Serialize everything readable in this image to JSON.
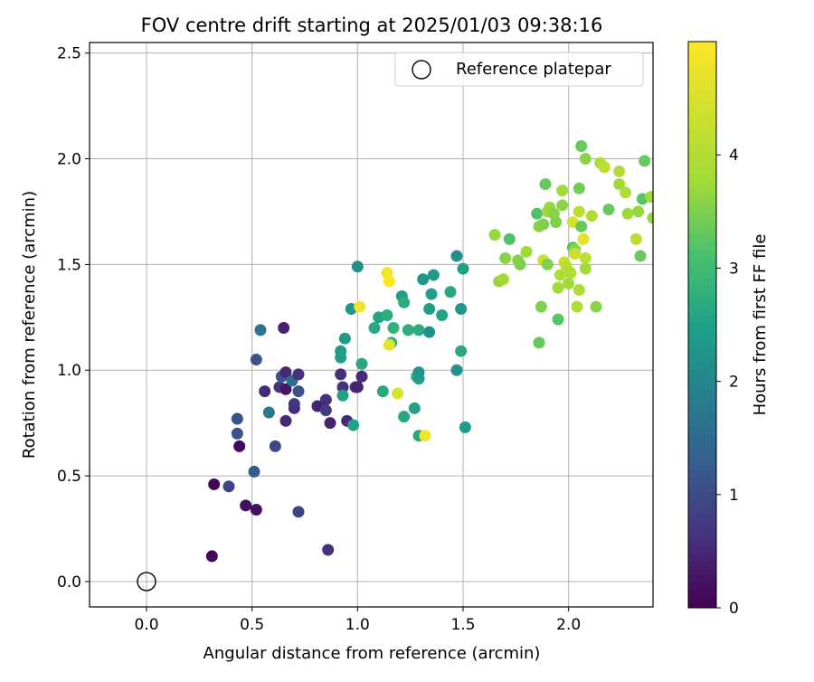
{
  "chart_data": {
    "type": "scatter",
    "title": "FOV centre drift starting at 2025/01/03 09:38:16",
    "xlabel": "Angular distance from reference (arcmin)",
    "ylabel": "Rotation from reference (arcmin)",
    "xlim": [
      -0.27,
      2.4
    ],
    "ylim": [
      -0.12,
      2.55
    ],
    "xticks": [
      "0.0",
      "0.5",
      "1.0",
      "1.5",
      "2.0"
    ],
    "yticks": [
      "0.0",
      "0.5",
      "1.0",
      "1.5",
      "2.0",
      "2.5"
    ],
    "grid": true,
    "legend": {
      "placement": "top-right",
      "entries": [
        "Reference platepar"
      ]
    },
    "reference": {
      "x": 0.0,
      "y": 0.0
    },
    "colorbar": {
      "label": "Hours from first FF file",
      "ticks": [
        "0",
        "1",
        "2",
        "3",
        "4"
      ],
      "range": [
        0,
        5
      ],
      "colormap": "viridis"
    },
    "points": [
      [
        0.31,
        0.12,
        0.1
      ],
      [
        0.32,
        0.46,
        0.1
      ],
      [
        0.44,
        0.64,
        0.1
      ],
      [
        0.47,
        0.36,
        0.2
      ],
      [
        0.52,
        0.34,
        0.2
      ],
      [
        0.39,
        0.45,
        1.0
      ],
      [
        0.43,
        0.77,
        1.2
      ],
      [
        0.43,
        0.7,
        1.2
      ],
      [
        0.51,
        0.52,
        1.4
      ],
      [
        0.52,
        1.05,
        1.3
      ],
      [
        0.54,
        1.19,
        1.9
      ],
      [
        0.56,
        0.9,
        0.6
      ],
      [
        0.58,
        0.8,
        2.0
      ],
      [
        0.61,
        0.64,
        1.1
      ],
      [
        0.63,
        0.92,
        0.8
      ],
      [
        0.64,
        0.97,
        1.3
      ],
      [
        0.65,
        1.2,
        0.5
      ],
      [
        0.66,
        0.99,
        0.6
      ],
      [
        0.66,
        0.91,
        0.3
      ],
      [
        0.66,
        0.76,
        0.6
      ],
      [
        0.69,
        0.95,
        1.8
      ],
      [
        0.7,
        0.82,
        0.6
      ],
      [
        0.7,
        0.84,
        0.8
      ],
      [
        0.72,
        0.9,
        1.3
      ],
      [
        0.72,
        0.98,
        0.7
      ],
      [
        0.72,
        0.33,
        1.0
      ],
      [
        0.81,
        0.83,
        0.5
      ],
      [
        0.85,
        0.86,
        0.7
      ],
      [
        0.85,
        0.81,
        0.9
      ],
      [
        0.86,
        0.15,
        0.7
      ],
      [
        0.87,
        0.75,
        0.5
      ],
      [
        0.92,
        0.98,
        0.7
      ],
      [
        0.93,
        0.92,
        0.7
      ],
      [
        0.95,
        0.76,
        0.6
      ],
      [
        0.99,
        0.92,
        0.8
      ],
      [
        1.0,
        0.92,
        0.5
      ],
      [
        1.02,
        0.97,
        0.6
      ],
      [
        0.92,
        1.09,
        2.7
      ],
      [
        0.92,
        1.06,
        2.8
      ],
      [
        0.93,
        0.88,
        2.9
      ],
      [
        0.94,
        1.15,
        2.7
      ],
      [
        0.97,
        1.29,
        2.6
      ],
      [
        0.98,
        0.74,
        2.9
      ],
      [
        1.0,
        1.49,
        2.5
      ],
      [
        1.02,
        1.03,
        3.0
      ],
      [
        1.08,
        1.2,
        3.0
      ],
      [
        1.1,
        1.25,
        2.9
      ],
      [
        1.12,
        0.9,
        3.0
      ],
      [
        1.14,
        1.26,
        3.1
      ],
      [
        1.17,
        1.2,
        3.2
      ],
      [
        1.21,
        1.35,
        2.8
      ],
      [
        1.22,
        1.32,
        3.1
      ],
      [
        1.22,
        0.78,
        3.0
      ],
      [
        1.24,
        1.19,
        3.1
      ],
      [
        1.27,
        0.82,
        2.9
      ],
      [
        1.28,
        0.97,
        3.2
      ],
      [
        1.29,
        1.19,
        3.1
      ],
      [
        1.29,
        0.96,
        2.8
      ],
      [
        1.29,
        0.99,
        2.6
      ],
      [
        1.29,
        0.69,
        3.0
      ],
      [
        1.31,
        1.43,
        2.6
      ],
      [
        1.34,
        1.29,
        2.8
      ],
      [
        1.34,
        1.18,
        2.5
      ],
      [
        1.35,
        1.36,
        2.8
      ],
      [
        1.36,
        1.45,
        2.7
      ],
      [
        1.4,
        1.26,
        2.9
      ],
      [
        1.44,
        1.37,
        3.0
      ],
      [
        1.47,
        1.54,
        2.5
      ],
      [
        1.47,
        1.0,
        2.5
      ],
      [
        1.49,
        1.09,
        3.0
      ],
      [
        1.49,
        1.29,
        2.6
      ],
      [
        1.5,
        1.48,
        2.8
      ],
      [
        1.51,
        0.73,
        2.7
      ],
      [
        1.16,
        1.13,
        3.2
      ],
      [
        1.01,
        1.3,
        4.9
      ],
      [
        1.14,
        1.46,
        4.9
      ],
      [
        1.15,
        1.42,
        5.0
      ],
      [
        1.15,
        1.12,
        4.8
      ],
      [
        1.19,
        0.89,
        4.7
      ],
      [
        1.32,
        0.69,
        4.9
      ],
      [
        1.65,
        1.64,
        4.2
      ],
      [
        1.67,
        1.42,
        4.2
      ],
      [
        1.69,
        1.43,
        4.3
      ],
      [
        1.7,
        1.53,
        4.1
      ],
      [
        1.72,
        1.62,
        3.6
      ],
      [
        1.76,
        1.52,
        4.1
      ],
      [
        1.77,
        1.5,
        4.0
      ],
      [
        1.8,
        1.56,
        4.3
      ],
      [
        1.85,
        1.74,
        3.6
      ],
      [
        1.86,
        1.13,
        3.8
      ],
      [
        1.86,
        1.68,
        4.1
      ],
      [
        1.87,
        1.3,
        4.0
      ],
      [
        1.88,
        1.52,
        4.6
      ],
      [
        1.88,
        1.69,
        4.0
      ],
      [
        1.89,
        1.88,
        3.8
      ],
      [
        1.9,
        1.75,
        4.3
      ],
      [
        1.9,
        1.5,
        4.0
      ],
      [
        1.91,
        1.77,
        4.2
      ],
      [
        1.93,
        1.74,
        4.1
      ],
      [
        1.94,
        1.7,
        4.0
      ],
      [
        1.95,
        1.39,
        4.3
      ],
      [
        1.95,
        1.24,
        3.7
      ],
      [
        1.96,
        1.45,
        4.4
      ],
      [
        1.97,
        1.78,
        4.1
      ],
      [
        1.97,
        1.85,
        4.3
      ],
      [
        1.98,
        1.51,
        4.6
      ],
      [
        1.99,
        1.49,
        4.5
      ],
      [
        2.0,
        1.41,
        4.3
      ],
      [
        2.01,
        1.46,
        4.4
      ],
      [
        2.02,
        1.7,
        4.7
      ],
      [
        2.02,
        1.58,
        3.7
      ],
      [
        2.03,
        1.57,
        4.1
      ],
      [
        2.03,
        1.55,
        4.6
      ],
      [
        2.04,
        1.3,
        4.4
      ],
      [
        2.05,
        1.38,
        4.4
      ],
      [
        2.05,
        1.75,
        4.5
      ],
      [
        2.05,
        1.86,
        3.9
      ],
      [
        2.06,
        2.06,
        3.8
      ],
      [
        2.06,
        1.68,
        3.8
      ],
      [
        2.07,
        1.62,
        4.8
      ],
      [
        2.08,
        1.53,
        4.5
      ],
      [
        2.08,
        1.48,
        4.3
      ],
      [
        2.08,
        2.0,
        4.1
      ],
      [
        2.11,
        1.73,
        4.4
      ],
      [
        2.13,
        1.3,
        4.1
      ],
      [
        2.15,
        1.98,
        4.4
      ],
      [
        2.17,
        1.96,
        4.5
      ],
      [
        2.19,
        1.76,
        3.8
      ],
      [
        2.24,
        1.94,
        4.4
      ],
      [
        2.24,
        1.88,
        4.3
      ],
      [
        2.27,
        1.84,
        4.4
      ],
      [
        2.28,
        1.74,
        4.3
      ],
      [
        2.32,
        1.62,
        4.5
      ],
      [
        2.33,
        1.75,
        4.2
      ],
      [
        2.34,
        1.54,
        3.8
      ],
      [
        2.35,
        1.81,
        3.7
      ],
      [
        2.36,
        1.99,
        3.8
      ],
      [
        2.39,
        1.82,
        4.3
      ],
      [
        2.4,
        1.72,
        4.2
      ]
    ]
  }
}
